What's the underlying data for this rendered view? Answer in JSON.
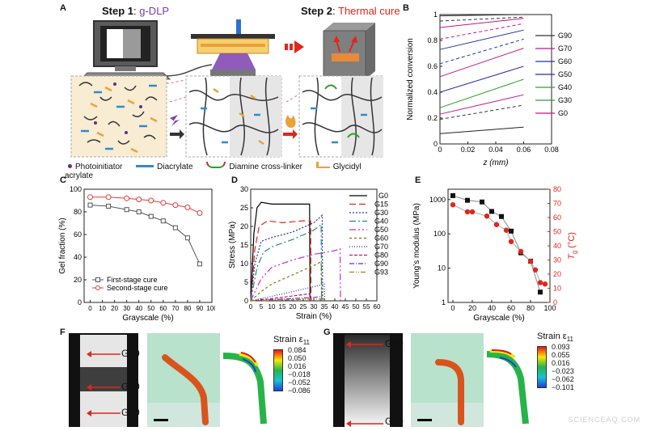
{
  "figure": {
    "panels": {
      "A": {
        "label": "A",
        "step1_prefix": "Step 1",
        "step1_name": "g-DLP",
        "step2_prefix": "Step 2",
        "step2_name": "Thermal cure",
        "legend": [
          "Photoinitiator",
          "Diacrylate",
          "Diamine cross-linker",
          "Glycidyl acrylate"
        ],
        "colors": {
          "step1_name": "#7a3aa8",
          "step2_name": "#e0261b",
          "mesh_bg": "#f8ecd2"
        }
      },
      "B": {
        "label": "B"
      },
      "C": {
        "label": "C"
      },
      "D": {
        "label": "D"
      },
      "E": {
        "label": "E"
      },
      "F": {
        "label": "F",
        "strip_labels": [
          "G20",
          "G80",
          "G20"
        ],
        "strain_title": "Strain ε",
        "strain_sub": "11",
        "colorbar_ticks": [
          "0.084",
          "0.050",
          "0.016",
          "−0.018",
          "−0.052",
          "−0.086"
        ]
      },
      "G": {
        "label": "G",
        "strip_labels": [
          "G80",
          "G20"
        ],
        "strain_title": "Strain ε",
        "strain_sub": "11",
        "colorbar_ticks": [
          "0.093",
          "0.055",
          "0.016",
          "−0.023",
          "−0.062",
          "−0.101"
        ]
      }
    },
    "colorbar_colors": [
      "#e8141c",
      "#f5e800",
      "#27b34a",
      "#17c3d8",
      "#1f3fd6"
    ],
    "watermark": "SCIENCEAQ.COM"
  },
  "chart_data": [
    {
      "panel": "B",
      "type": "line",
      "xlabel": "z (mm)",
      "ylabel": "Normalized conversion",
      "xlim": [
        0,
        0.08
      ],
      "ylim": [
        0,
        1
      ],
      "xticks": [
        "0",
        "0.02",
        "0.04",
        "0.06",
        "0.08"
      ],
      "yticks": [
        "0",
        "0.2",
        "0.4",
        "0.6",
        "0.8",
        "1"
      ],
      "grid": false,
      "legend_position": "right",
      "series": [
        {
          "name": "G90",
          "color": "#333333",
          "dash": "solid",
          "x": [
            0,
            0.06
          ],
          "y": [
            0.99,
            1.0
          ]
        },
        {
          "name": "G90",
          "color": "#333333",
          "dash": "dashed",
          "x": [
            0,
            0.06
          ],
          "y": [
            0.95,
            0.98
          ]
        },
        {
          "name": "G70",
          "color": "#c4148c",
          "dash": "solid",
          "x": [
            0,
            0.06
          ],
          "y": [
            0.9,
            0.97
          ]
        },
        {
          "name": "G70",
          "color": "#c4148c",
          "dash": "dashed",
          "x": [
            0,
            0.06
          ],
          "y": [
            0.81,
            0.93
          ]
        },
        {
          "name": "G60",
          "color": "#2a2ea8",
          "dash": "solid",
          "x": [
            0,
            0.06
          ],
          "y": [
            0.73,
            0.88
          ]
        },
        {
          "name": "G60",
          "color": "#2a2ea8",
          "dash": "dashed",
          "x": [
            0,
            0.06
          ],
          "y": [
            0.62,
            0.81
          ]
        },
        {
          "name": "G50",
          "color": "#c4148c",
          "dash": "solid",
          "x": [
            0,
            0.06
          ],
          "y": [
            0.52,
            0.74
          ]
        },
        {
          "name": "G50",
          "color": "#2a2ea8",
          "dash": "solid",
          "x": [
            0,
            0.06
          ],
          "y": [
            0.4,
            0.6
          ]
        },
        {
          "name": "G40",
          "color": "#2da02d",
          "dash": "solid",
          "x": [
            0,
            0.06
          ],
          "y": [
            0.28,
            0.5
          ]
        },
        {
          "name": "G30",
          "color": "#c4148c",
          "dash": "solid",
          "x": [
            0,
            0.06
          ],
          "y": [
            0.23,
            0.38
          ]
        },
        {
          "name": "G0",
          "color": "#333333",
          "dash": "dashed",
          "x": [
            0,
            0.06
          ],
          "y": [
            0.19,
            0.3
          ]
        },
        {
          "name": "G0",
          "color": "#222222",
          "dash": "solid",
          "x": [
            0,
            0.06
          ],
          "y": [
            0.08,
            0.13
          ]
        }
      ],
      "legend": [
        {
          "name": "G90",
          "color": "#333333"
        },
        {
          "name": "G70",
          "color": "#c4148c"
        },
        {
          "name": "G60",
          "color": "#2a2ea8"
        },
        {
          "name": "G50",
          "color": "#2a2ea8"
        },
        {
          "name": "G40",
          "color": "#2da02d"
        },
        {
          "name": "G30",
          "color": "#2da02d"
        },
        {
          "name": "G0",
          "color": "#c4148c"
        }
      ]
    },
    {
      "panel": "C",
      "type": "line",
      "xlabel": "Grayscale (%)",
      "ylabel": "Gel fraction (%)",
      "xlim": [
        -5,
        100
      ],
      "ylim": [
        0,
        100
      ],
      "xticks": [
        "0",
        "10",
        "20",
        "30",
        "40",
        "50",
        "60",
        "70",
        "80",
        "90",
        "100"
      ],
      "yticks": [
        "0",
        "20",
        "40",
        "60",
        "80",
        "100"
      ],
      "grid": false,
      "legend_position": "bottom-left",
      "series": [
        {
          "name": "First-stage cure",
          "color": "#555555",
          "marker": "square",
          "x": [
            0,
            15,
            30,
            40,
            50,
            60,
            70,
            80,
            90
          ],
          "y": [
            86,
            85,
            82,
            80,
            76,
            72,
            66,
            57,
            34
          ]
        },
        {
          "name": "Second-stage cure",
          "color": "#e03c3c",
          "marker": "circle",
          "x": [
            0,
            15,
            30,
            40,
            50,
            60,
            70,
            80,
            90
          ],
          "y": [
            93,
            93,
            92,
            91,
            90,
            88,
            86,
            84,
            79
          ]
        }
      ]
    },
    {
      "panel": "D",
      "type": "line",
      "xlabel": "Strain (%)",
      "ylabel": "Stress (MPa)",
      "xlim": [
        0,
        60
      ],
      "ylim": [
        0,
        30
      ],
      "xticks": [
        "0",
        "5",
        "10",
        "15",
        "20",
        "25",
        "30",
        "35",
        "40",
        "45",
        "50",
        "55",
        "60"
      ],
      "yticks": [
        "0",
        "5",
        "10",
        "15",
        "20",
        "25",
        "30"
      ],
      "grid": false,
      "legend_position": "top-right",
      "series": [
        {
          "name": "G0",
          "color": "#000000",
          "dash": "solid",
          "x": [
            0,
            1.5,
            3,
            5,
            10,
            20,
            28,
            28.2
          ],
          "y": [
            0,
            18,
            25,
            26.5,
            26,
            26,
            26,
            0
          ]
        },
        {
          "name": "G15",
          "color": "#e0261b",
          "dash": "8,4",
          "x": [
            0,
            2,
            4,
            8,
            15,
            25,
            28.5,
            28.7
          ],
          "y": [
            0,
            14,
            20,
            21.5,
            21,
            21.5,
            21.5,
            0
          ]
        },
        {
          "name": "G30",
          "color": "#2a2ea8",
          "dash": "2,2",
          "x": [
            0,
            2,
            5,
            10,
            20,
            30,
            34,
            34.2
          ],
          "y": [
            0,
            10,
            16,
            17,
            18.5,
            21,
            23,
            0
          ]
        },
        {
          "name": "G40",
          "color": "#1f8a8a",
          "dash": "8,3,2,3",
          "x": [
            0,
            3,
            6,
            10,
            20,
            30,
            33.5,
            33.7
          ],
          "y": [
            0,
            9,
            13,
            14.5,
            16.5,
            19,
            20.5,
            0
          ]
        },
        {
          "name": "G50",
          "color": "#c82ac8",
          "dash": "8,3,2,3,2,3",
          "x": [
            0,
            5,
            10,
            20,
            30,
            40,
            42.5,
            42.7
          ],
          "y": [
            0,
            6,
            9,
            11,
            12.5,
            13.5,
            14,
            0
          ]
        },
        {
          "name": "G60",
          "color": "#7a7a00",
          "dash": "3,3",
          "x": [
            0,
            5,
            10,
            20,
            30,
            33.5,
            33.7
          ],
          "y": [
            0,
            2.5,
            4.5,
            7,
            9.5,
            10.5,
            0
          ]
        },
        {
          "name": "G70",
          "color": "#2a2ea8",
          "dash": "1,2",
          "x": [
            0,
            10,
            20,
            30,
            35,
            35.2
          ],
          "y": [
            0,
            1.2,
            2.5,
            3.8,
            4.5,
            0
          ]
        },
        {
          "name": "G80",
          "color": "#c4148c",
          "dash": "4,2",
          "x": [
            0,
            10,
            20,
            28,
            28.2
          ],
          "y": [
            0,
            0.6,
            1.3,
            1.9,
            0
          ]
        },
        {
          "name": "G90",
          "color": "#6a2ac8",
          "dash": "6,2,1,2",
          "x": [
            0,
            10,
            20,
            30,
            33,
            33.2
          ],
          "y": [
            0,
            0.3,
            0.6,
            0.9,
            1.1,
            0
          ]
        },
        {
          "name": "G93",
          "color": "#a08a00",
          "dash": "6,2,1,2,1,2",
          "x": [
            0,
            10,
            20,
            30,
            35,
            35.2
          ],
          "y": [
            0,
            0.15,
            0.3,
            0.45,
            0.5,
            0
          ]
        }
      ]
    },
    {
      "panel": "E",
      "type": "line",
      "xlabel": "Grayscale (%)",
      "ylabel": "Young’s modulus (MPa)",
      "ylabel2": "T",
      "ylabel2_sub": "g",
      "ylabel2_unit": " (°C)",
      "xlim": [
        -5,
        100
      ],
      "ylim": [
        1,
        2000
      ],
      "y_scale": "log",
      "y2lim": [
        0,
        80
      ],
      "xticks": [
        "0",
        "20",
        "40",
        "60",
        "80",
        "100"
      ],
      "yticks": [
        "1",
        "10",
        "100",
        "1000"
      ],
      "y2ticks": [
        "0",
        "10",
        "20",
        "30",
        "40",
        "50",
        "60",
        "70",
        "80"
      ],
      "grid": false,
      "series": [
        {
          "name": "Young’s modulus",
          "color": "#111111",
          "marker": "square",
          "axis": "left",
          "x": [
            0,
            15,
            30,
            40,
            50,
            60,
            70,
            80,
            90
          ],
          "y": [
            1300,
            950,
            850,
            450,
            320,
            120,
            28,
            16,
            2
          ]
        },
        {
          "name": "Tg",
          "color": "#e0261b",
          "marker": "circle",
          "axis": "right",
          "x": [
            0,
            15,
            20,
            35,
            45,
            55,
            60,
            70,
            80,
            85,
            90,
            95
          ],
          "y": [
            69,
            64,
            64,
            61,
            55,
            51,
            43,
            36,
            29,
            23,
            14,
            13
          ]
        }
      ]
    }
  ]
}
